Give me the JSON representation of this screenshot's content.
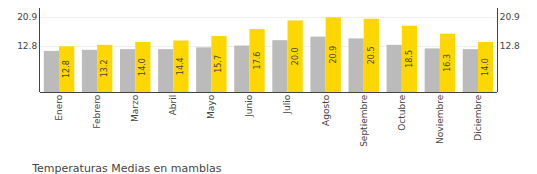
{
  "chart_data": {
    "type": "bar",
    "title": "Temperaturas Medias en mamblas",
    "categories": [
      "Enero",
      "Febrero",
      "Marzo",
      "Abril",
      "Mayo",
      "Junio",
      "Julio",
      "Agosto",
      "Septiembre",
      "Octubre",
      "Noviembre",
      "Diciembre"
    ],
    "series": [
      {
        "color": "#BBBBBB",
        "values": [
          11.5,
          11.8,
          12.0,
          12.0,
          12.5,
          13.0,
          14.5,
          15.5,
          15.0,
          13.2,
          12.2,
          12.0
        ]
      },
      {
        "color": "#FFD700",
        "values": [
          12.8,
          13.2,
          14.0,
          14.4,
          15.7,
          17.6,
          20.0,
          20.9,
          20.5,
          18.5,
          16.3,
          14.0
        ],
        "data_labels": true,
        "value_labels": [
          "12.8",
          "13.2",
          "14.0",
          "14.4",
          "15.7",
          "17.6",
          "20.0",
          "20.9",
          "20.5",
          "18.5",
          "16.3",
          "14.0"
        ]
      }
    ],
    "ylim": [
      0,
      23.5
    ],
    "yticks": [
      12.8,
      20.9
    ],
    "y2lim": [
      0,
      23.5
    ],
    "y2ticks": [
      12.8,
      20.9
    ],
    "grid": true
  }
}
